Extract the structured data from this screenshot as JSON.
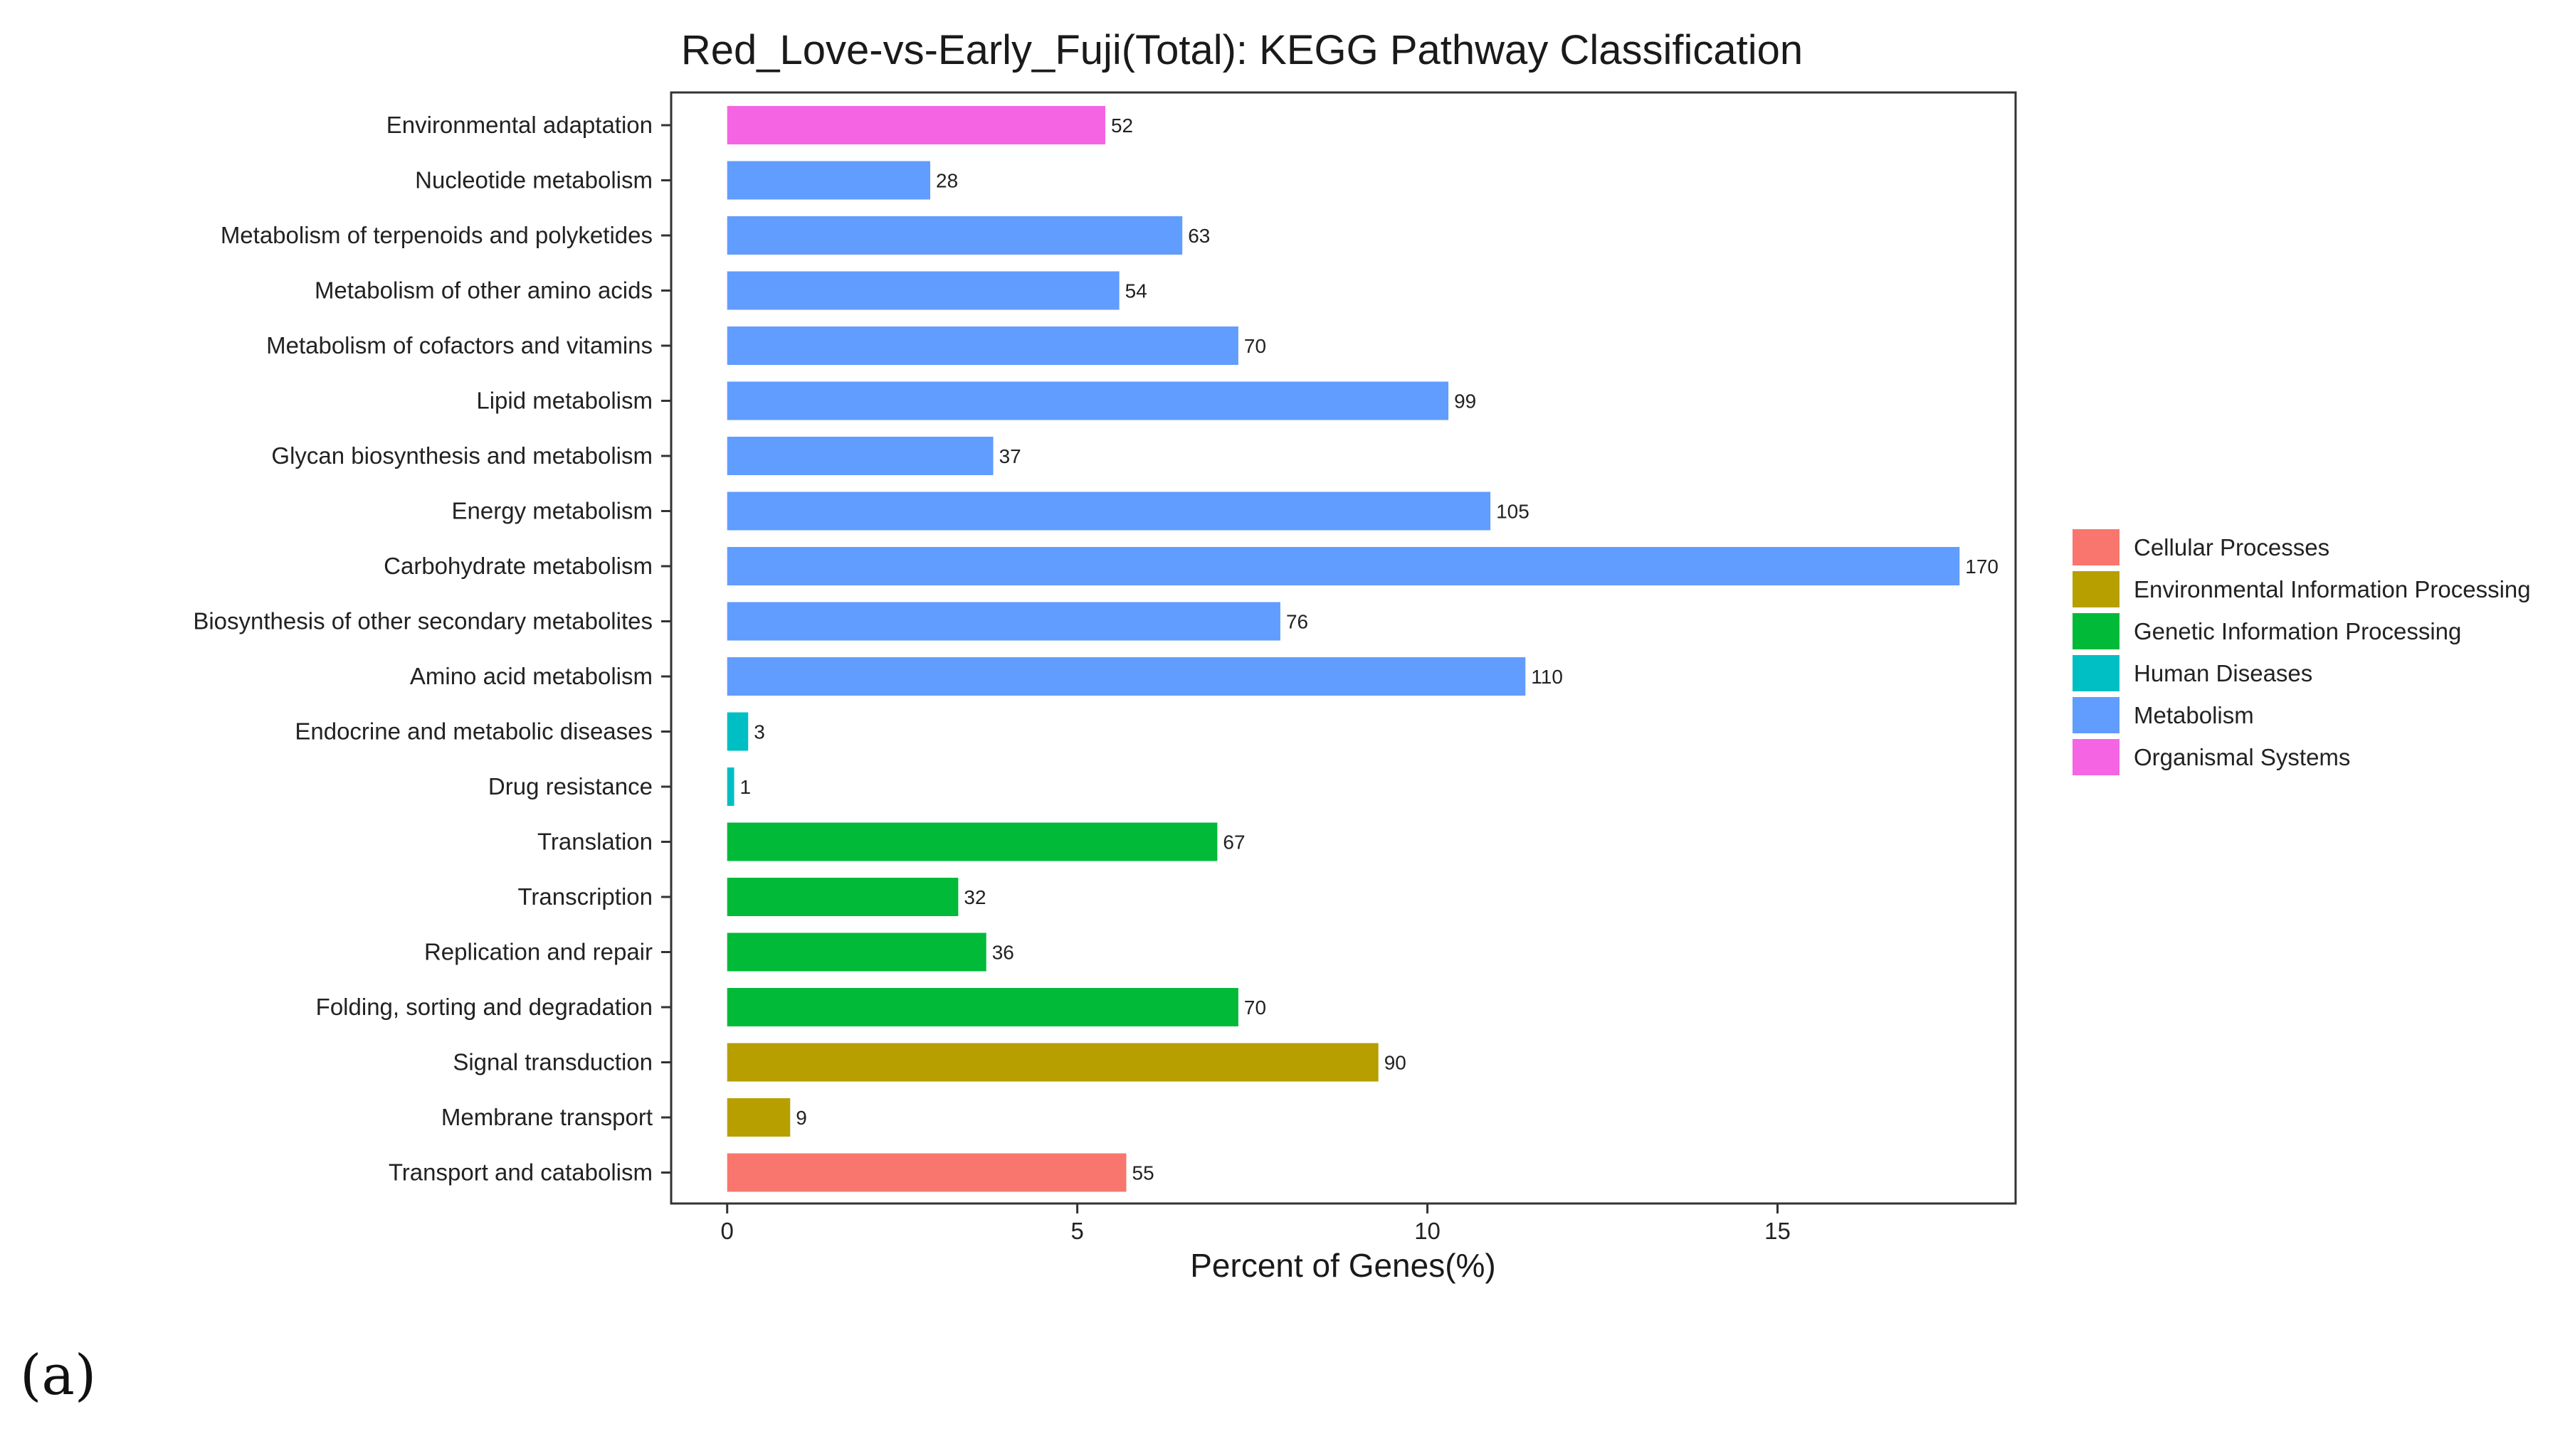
{
  "panel_label": "(a)",
  "chart_data": {
    "type": "bar",
    "orientation": "horizontal",
    "title": "Red_Love-vs-Early_Fuji(Total): KEGG Pathway Classification",
    "xlabel": "Percent of Genes(%)",
    "ylabel": "",
    "xlim": [
      -0.8,
      18.4
    ],
    "x_ticks": [
      0,
      5,
      10,
      15
    ],
    "grid": false,
    "legend_position": "right",
    "groups": [
      {
        "name": "Cellular Processes",
        "color": "#F8766D"
      },
      {
        "name": "Environmental Information Processing",
        "color": "#B79F00"
      },
      {
        "name": "Genetic Information Processing",
        "color": "#00BA38"
      },
      {
        "name": "Human Diseases",
        "color": "#00BFC4"
      },
      {
        "name": "Metabolism",
        "color": "#619CFF"
      },
      {
        "name": "Organismal Systems",
        "color": "#F564E3"
      }
    ],
    "bars": [
      {
        "category": "Environmental adaptation",
        "group": "Organismal Systems",
        "percent": 5.4,
        "count": "52"
      },
      {
        "category": "Nucleotide metabolism",
        "group": "Metabolism",
        "percent": 2.9,
        "count": "28"
      },
      {
        "category": "Metabolism of terpenoids and polyketides",
        "group": "Metabolism",
        "percent": 6.5,
        "count": "63"
      },
      {
        "category": "Metabolism of other amino acids",
        "group": "Metabolism",
        "percent": 5.6,
        "count": "54"
      },
      {
        "category": "Metabolism of cofactors and vitamins",
        "group": "Metabolism",
        "percent": 7.3,
        "count": "70"
      },
      {
        "category": "Lipid metabolism",
        "group": "Metabolism",
        "percent": 10.3,
        "count": "99"
      },
      {
        "category": "Glycan biosynthesis and metabolism",
        "group": "Metabolism",
        "percent": 3.8,
        "count": "37"
      },
      {
        "category": "Energy metabolism",
        "group": "Metabolism",
        "percent": 10.9,
        "count": "105"
      },
      {
        "category": "Carbohydrate metabolism",
        "group": "Metabolism",
        "percent": 17.6,
        "count": "170"
      },
      {
        "category": "Biosynthesis of other secondary metabolites",
        "group": "Metabolism",
        "percent": 7.9,
        "count": "76"
      },
      {
        "category": "Amino acid metabolism",
        "group": "Metabolism",
        "percent": 11.4,
        "count": "110"
      },
      {
        "category": "Endocrine and metabolic diseases",
        "group": "Human Diseases",
        "percent": 0.3,
        "count": "3"
      },
      {
        "category": "Drug resistance",
        "group": "Human Diseases",
        "percent": 0.1,
        "count": "1"
      },
      {
        "category": "Translation",
        "group": "Genetic Information Processing",
        "percent": 7.0,
        "count": "67"
      },
      {
        "category": "Transcription",
        "group": "Genetic Information Processing",
        "percent": 3.3,
        "count": "32"
      },
      {
        "category": "Replication and repair",
        "group": "Genetic Information Processing",
        "percent": 3.7,
        "count": "36"
      },
      {
        "category": "Folding, sorting and degradation",
        "group": "Genetic Information Processing",
        "percent": 7.3,
        "count": "70"
      },
      {
        "category": "Signal transduction",
        "group": "Environmental Information Processing",
        "percent": 9.3,
        "count": "90"
      },
      {
        "category": "Membrane transport",
        "group": "Environmental Information Processing",
        "percent": 0.9,
        "count": "9"
      },
      {
        "category": "Transport and catabolism",
        "group": "Cellular Processes",
        "percent": 5.7,
        "count": "55"
      }
    ]
  }
}
